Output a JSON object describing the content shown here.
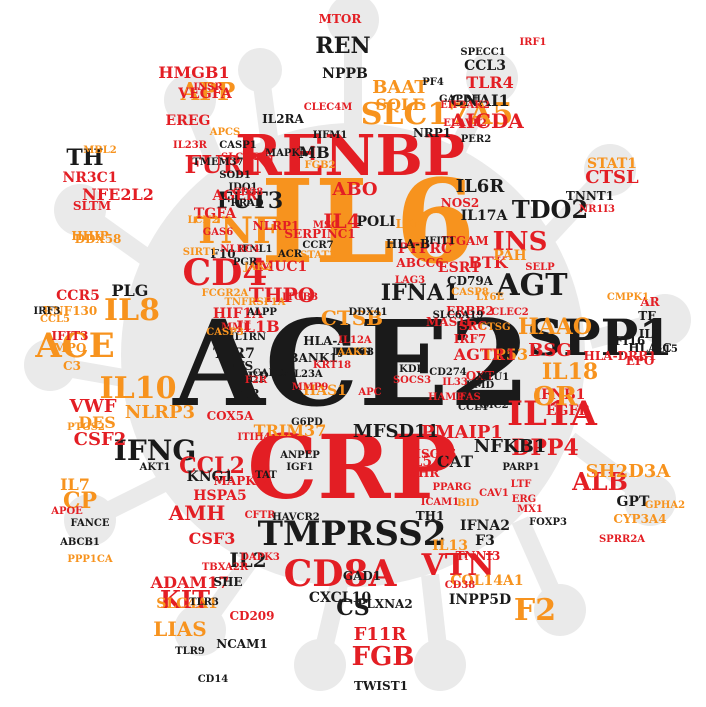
{
  "colors": {
    "red": "#e31e24",
    "orange": "#f7931e",
    "black": "#1a1a1a",
    "silhouette": "#eaeaea"
  },
  "words": [
    {
      "text": "ACE2",
      "color": "black"
    },
    {
      "text": "CRP",
      "color": "red"
    },
    {
      "text": "IL6",
      "color": "orange"
    },
    {
      "text": "RENBP",
      "color": "red"
    },
    {
      "text": "TMPRSS2",
      "color": "black"
    },
    {
      "text": "SPP1",
      "color": "black"
    },
    {
      "text": "CD8A",
      "color": "red"
    },
    {
      "text": "ACE",
      "color": "orange"
    },
    {
      "text": "IL8",
      "color": "orange"
    },
    {
      "text": "CD4",
      "color": "red"
    },
    {
      "text": "TNF",
      "color": "orange"
    },
    {
      "text": "AGT",
      "color": "black"
    },
    {
      "text": "IL10",
      "color": "orange"
    },
    {
      "text": "IFNG",
      "color": "black"
    },
    {
      "text": "VTN",
      "color": "red"
    },
    {
      "text": "F2",
      "color": "orange"
    },
    {
      "text": "ALB",
      "color": "red"
    },
    {
      "text": "IL1A",
      "color": "red"
    },
    {
      "text": "INS",
      "color": "red"
    },
    {
      "text": "SLC17A5",
      "color": "orange"
    },
    {
      "text": "FGB",
      "color": "red"
    },
    {
      "text": "KIT",
      "color": "red"
    },
    {
      "text": "LIAS",
      "color": "orange"
    },
    {
      "text": "APP",
      "color": "orange"
    },
    {
      "text": "REN",
      "color": "black"
    },
    {
      "text": "IFNA1",
      "color": "black"
    },
    {
      "text": "TDO2",
      "color": "black"
    },
    {
      "text": "FURIN",
      "color": "red"
    },
    {
      "text": "FUT3",
      "color": "black"
    },
    {
      "text": "IL4",
      "color": "red"
    },
    {
      "text": "CTSB",
      "color": "orange"
    },
    {
      "text": "CCL2",
      "color": "red"
    },
    {
      "text": "CSF2",
      "color": "red"
    },
    {
      "text": "NLRP3",
      "color": "orange"
    },
    {
      "text": "DPP4",
      "color": "red"
    },
    {
      "text": "NFKB1",
      "color": "black"
    },
    {
      "text": "THPO",
      "color": "red"
    },
    {
      "text": "MFSD11",
      "color": "black"
    },
    {
      "text": "PMAIP1",
      "color": "red"
    },
    {
      "text": "TRIM37",
      "color": "orange"
    },
    {
      "text": "ABO",
      "color": "red"
    },
    {
      "text": "IL6R",
      "color": "black"
    },
    {
      "text": "TLR4",
      "color": "red"
    },
    {
      "text": "AICDA",
      "color": "red"
    },
    {
      "text": "GNAI1",
      "color": "black"
    },
    {
      "text": "CCL3",
      "color": "black"
    },
    {
      "text": "BAAT",
      "color": "orange"
    },
    {
      "text": "SQLE",
      "color": "orange"
    },
    {
      "text": "NPPB",
      "color": "black"
    },
    {
      "text": "MTOR",
      "color": "red"
    },
    {
      "text": "HMGB1",
      "color": "red"
    },
    {
      "text": "VEGFA",
      "color": "red"
    },
    {
      "text": "EREG",
      "color": "red"
    },
    {
      "text": "TH",
      "color": "black"
    },
    {
      "text": "NFE2L2",
      "color": "red"
    },
    {
      "text": "CTSL",
      "color": "red"
    },
    {
      "text": "STAT1",
      "color": "orange"
    },
    {
      "text": "TP53",
      "color": "orange"
    },
    {
      "text": "HAAO",
      "color": "orange"
    },
    {
      "text": "BSG",
      "color": "red"
    },
    {
      "text": "IL18",
      "color": "orange"
    },
    {
      "text": "IFNB1",
      "color": "red"
    },
    {
      "text": "EGFR",
      "color": "red"
    },
    {
      "text": "OR",
      "color": "orange"
    },
    {
      "text": "SH2D3A",
      "color": "orange"
    },
    {
      "text": "GPT",
      "color": "black"
    },
    {
      "text": "CYP3A4",
      "color": "orange"
    },
    {
      "text": "CP",
      "color": "orange"
    },
    {
      "text": "IL7",
      "color": "orange"
    },
    {
      "text": "AMH",
      "color": "red"
    },
    {
      "text": "CSF3",
      "color": "red"
    },
    {
      "text": "IL2",
      "color": "black"
    },
    {
      "text": "ADAM17",
      "color": "red"
    },
    {
      "text": "SLC4A1",
      "color": "orange"
    },
    {
      "text": "CS",
      "color": "black"
    },
    {
      "text": "F11R",
      "color": "red"
    },
    {
      "text": "CXCL10",
      "color": "black"
    },
    {
      "text": "INPP5D",
      "color": "black"
    },
    {
      "text": "COL14A1",
      "color": "orange"
    },
    {
      "text": "IL13",
      "color": "orange"
    },
    {
      "text": "VWF",
      "color": "red"
    },
    {
      "text": "DES",
      "color": "orange"
    },
    {
      "text": "CCR5",
      "color": "red"
    },
    {
      "text": "RNF130",
      "color": "orange"
    },
    {
      "text": "IL1B",
      "color": "red"
    },
    {
      "text": "HIF1A",
      "color": "red"
    },
    {
      "text": "CAT",
      "color": "black"
    },
    {
      "text": "AGTR1",
      "color": "red"
    },
    {
      "text": "AHR",
      "color": "red"
    },
    {
      "text": "ISG15",
      "color": "red"
    },
    {
      "text": "HSPA5",
      "color": "red"
    },
    {
      "text": "KNG1",
      "color": "black"
    },
    {
      "text": "MB",
      "color": "black"
    },
    {
      "text": "POLI",
      "color": "black"
    },
    {
      "text": "AGER",
      "color": "red"
    },
    {
      "text": "TGFA",
      "color": "red"
    },
    {
      "text": "ESR1",
      "color": "red"
    },
    {
      "text": "PTPRC",
      "color": "red"
    },
    {
      "text": "IL17A",
      "color": "black"
    },
    {
      "text": "PLG",
      "color": "black"
    },
    {
      "text": "TLR7",
      "color": "black"
    },
    {
      "text": "LEP",
      "color": "black"
    },
    {
      "text": "EFS",
      "color": "black"
    },
    {
      "text": "TTR",
      "color": "black"
    },
    {
      "text": "BANK1",
      "color": "black"
    },
    {
      "text": "HAS1",
      "color": "orange"
    },
    {
      "text": "TH1",
      "color": "black"
    },
    {
      "text": "IFNA2",
      "color": "black"
    },
    {
      "text": "F3",
      "color": "black"
    },
    {
      "text": "IL5",
      "color": "red"
    },
    {
      "text": "SHE",
      "color": "black"
    },
    {
      "text": "TWIST1",
      "color": "black"
    },
    {
      "text": "MUC1",
      "color": "red"
    },
    {
      "text": "TNNI3",
      "color": "red"
    },
    {
      "text": "GAD1",
      "color": "black"
    },
    {
      "text": "NCAM1",
      "color": "black"
    },
    {
      "text": "CD209",
      "color": "red"
    },
    {
      "text": "PLXNA2",
      "color": "black"
    },
    {
      "text": "MAPK14",
      "color": "red"
    },
    {
      "text": "IL2RA",
      "color": "black"
    },
    {
      "text": "NRP1",
      "color": "black"
    },
    {
      "text": "HFM1",
      "color": "black"
    },
    {
      "text": "CASP1",
      "color": "black"
    },
    {
      "text": "IDO1",
      "color": "black"
    },
    {
      "text": "SLC5A2",
      "color": "red"
    },
    {
      "text": "FGB2",
      "color": "orange"
    },
    {
      "text": "MAPK1",
      "color": "black"
    },
    {
      "text": "TMEM37",
      "color": "black"
    },
    {
      "text": "SOD1",
      "color": "black"
    },
    {
      "text": "NR3C1",
      "color": "red"
    },
    {
      "text": "SLTM",
      "color": "red"
    },
    {
      "text": "HHIP",
      "color": "orange"
    },
    {
      "text": "DDX58",
      "color": "orange"
    },
    {
      "text": "IFIT3",
      "color": "red"
    },
    {
      "text": "MPO",
      "color": "orange"
    },
    {
      "text": "C3",
      "color": "orange"
    },
    {
      "text": "CCL5",
      "color": "orange"
    },
    {
      "text": "IRF3",
      "color": "black"
    },
    {
      "text": "IL1RN",
      "color": "black"
    },
    {
      "text": "ALPP",
      "color": "black"
    },
    {
      "text": "IFNL1",
      "color": "black"
    },
    {
      "text": "PGR",
      "color": "black"
    },
    {
      "text": "F10",
      "color": "black"
    },
    {
      "text": "LXN",
      "color": "orange"
    },
    {
      "text": "ABCC6",
      "color": "red"
    },
    {
      "text": "MAS1L",
      "color": "red"
    },
    {
      "text": "ITGAM",
      "color": "red"
    },
    {
      "text": "BTK",
      "color": "red"
    },
    {
      "text": "PAH",
      "color": "orange"
    },
    {
      "text": "CD79A",
      "color": "black"
    },
    {
      "text": "SELP",
      "color": "red"
    },
    {
      "text": "TNNT1",
      "color": "black"
    },
    {
      "text": "NR1I3",
      "color": "red"
    },
    {
      "text": "LAG3",
      "color": "red"
    },
    {
      "text": "IRF7",
      "color": "red"
    },
    {
      "text": "SRC",
      "color": "red"
    },
    {
      "text": "OXT",
      "color": "red"
    },
    {
      "text": "ERBB2",
      "color": "red"
    },
    {
      "text": "NOS2",
      "color": "red"
    },
    {
      "text": "HLA-A",
      "color": "black"
    },
    {
      "text": "HLA-B",
      "color": "black"
    },
    {
      "text": "HLA-C",
      "color": "black"
    },
    {
      "text": "HLA-DRB1",
      "color": "red"
    },
    {
      "text": "IFI16",
      "color": "black"
    },
    {
      "text": "IL9",
      "color": "black"
    },
    {
      "text": "IL15",
      "color": "black"
    },
    {
      "text": "TF",
      "color": "black"
    },
    {
      "text": "AR",
      "color": "red"
    },
    {
      "text": "EPO",
      "color": "red"
    },
    {
      "text": "CMPK1",
      "color": "orange"
    },
    {
      "text": "GPHA2",
      "color": "orange"
    },
    {
      "text": "SPRR2A",
      "color": "red"
    },
    {
      "text": "PPP1CA",
      "color": "orange"
    },
    {
      "text": "ABCB1",
      "color": "black"
    },
    {
      "text": "FANCE",
      "color": "black"
    },
    {
      "text": "APOE",
      "color": "red"
    },
    {
      "text": "AKT1",
      "color": "black"
    },
    {
      "text": "DAPK3",
      "color": "red"
    },
    {
      "text": "CFTR",
      "color": "red"
    },
    {
      "text": "ITGB3",
      "color": "red"
    },
    {
      "text": "CD274",
      "color": "black"
    },
    {
      "text": "HAMP",
      "color": "red"
    },
    {
      "text": "CCL4",
      "color": "black"
    },
    {
      "text": "PARP1",
      "color": "black"
    },
    {
      "text": "LTF",
      "color": "red"
    },
    {
      "text": "ERG",
      "color": "red"
    },
    {
      "text": "MX1",
      "color": "red"
    },
    {
      "text": "FOXP3",
      "color": "black"
    },
    {
      "text": "CD38",
      "color": "red"
    },
    {
      "text": "BID",
      "color": "orange"
    },
    {
      "text": "CAV1",
      "color": "red"
    },
    {
      "text": "ICAM1",
      "color": "red"
    },
    {
      "text": "PPARG",
      "color": "red"
    },
    {
      "text": "G6PD",
      "color": "black"
    },
    {
      "text": "KRT18",
      "color": "red"
    },
    {
      "text": "IL23A",
      "color": "black"
    },
    {
      "text": "MMP9",
      "color": "red"
    },
    {
      "text": "TLR3",
      "color": "black"
    },
    {
      "text": "TLR9",
      "color": "black"
    },
    {
      "text": "CD14",
      "color": "black"
    },
    {
      "text": "TBXA2R",
      "color": "red"
    },
    {
      "text": "GAPDH",
      "color": "black"
    },
    {
      "text": "IRF1",
      "color": "red"
    },
    {
      "text": "SPECC1",
      "color": "black"
    },
    {
      "text": "PF4",
      "color": "black"
    },
    {
      "text": "CLEC4M",
      "color": "red"
    },
    {
      "text": "EIF2AK2",
      "color": "red"
    },
    {
      "text": "ELAVL2",
      "color": "red"
    },
    {
      "text": "PER2",
      "color": "black"
    },
    {
      "text": "SERPINC1",
      "color": "red"
    },
    {
      "text": "CCR7",
      "color": "black"
    },
    {
      "text": "STAT3",
      "color": "orange"
    },
    {
      "text": "MSC",
      "color": "red"
    },
    {
      "text": "F2R",
      "color": "red"
    },
    {
      "text": "MME",
      "color": "red"
    },
    {
      "text": "RRAD",
      "color": "black"
    },
    {
      "text": "CASP3",
      "color": "orange"
    },
    {
      "text": "CD28",
      "color": "red"
    },
    {
      "text": "NLRC4",
      "color": "red"
    },
    {
      "text": "FCGR2A",
      "color": "orange"
    },
    {
      "text": "JAK2",
      "color": "orange"
    },
    {
      "text": "SIRT1",
      "color": "orange"
    },
    {
      "text": "INSR",
      "color": "red"
    },
    {
      "text": "IL23R",
      "color": "red"
    },
    {
      "text": "APCS",
      "color": "orange"
    },
    {
      "text": "PTGS2",
      "color": "orange"
    },
    {
      "text": "MBL2",
      "color": "orange"
    },
    {
      "text": "TNFRSF1A",
      "color": "orange"
    },
    {
      "text": "LCN2",
      "color": "orange"
    },
    {
      "text": "GAS6",
      "color": "red"
    },
    {
      "text": "HGF",
      "color": "red"
    },
    {
      "text": "NLRP1",
      "color": "red"
    },
    {
      "text": "ITIH4",
      "color": "red"
    },
    {
      "text": "ACR",
      "color": "black"
    },
    {
      "text": "IFIT1",
      "color": "black"
    },
    {
      "text": "LY6E",
      "color": "orange"
    },
    {
      "text": "CLEC2",
      "color": "red"
    },
    {
      "text": "CASP8",
      "color": "orange"
    },
    {
      "text": "DDX41",
      "color": "black"
    },
    {
      "text": "IL12A",
      "color": "red"
    },
    {
      "text": "CTSG",
      "color": "orange"
    },
    {
      "text": "IL33",
      "color": "red"
    },
    {
      "text": "TAT",
      "color": "black"
    },
    {
      "text": "HAVCR2",
      "color": "black"
    },
    {
      "text": "CALCA",
      "color": "black"
    },
    {
      "text": "ANPEP",
      "color": "black"
    },
    {
      "text": "IGF1",
      "color": "black"
    },
    {
      "text": "KDR",
      "color": "black"
    },
    {
      "text": "SOCS3",
      "color": "red"
    },
    {
      "text": "FAS",
      "color": "red"
    },
    {
      "text": "DMD",
      "color": "black"
    },
    {
      "text": "SMC2",
      "color": "black"
    },
    {
      "text": "SLC6A19",
      "color": "black"
    },
    {
      "text": "NEU1",
      "color": "black"
    },
    {
      "text": "APC",
      "color": "red"
    },
    {
      "text": "COX5A",
      "color": "red"
    },
    {
      "text": "LIPC",
      "color": "black"
    },
    {
      "text": "RAN",
      "color": "black"
    },
    {
      "text": "JAK1",
      "color": "black"
    },
    {
      "text": "TUBE1",
      "color": "black"
    },
    {
      "text": "PC",
      "color": "black"
    },
    {
      "text": "IFITM3",
      "color": "black"
    },
    {
      "text": "MAVS",
      "color": "black"
    },
    {
      "text": "NHS",
      "color": "black"
    },
    {
      "text": "AAK1",
      "color": "orange"
    }
  ]
}
